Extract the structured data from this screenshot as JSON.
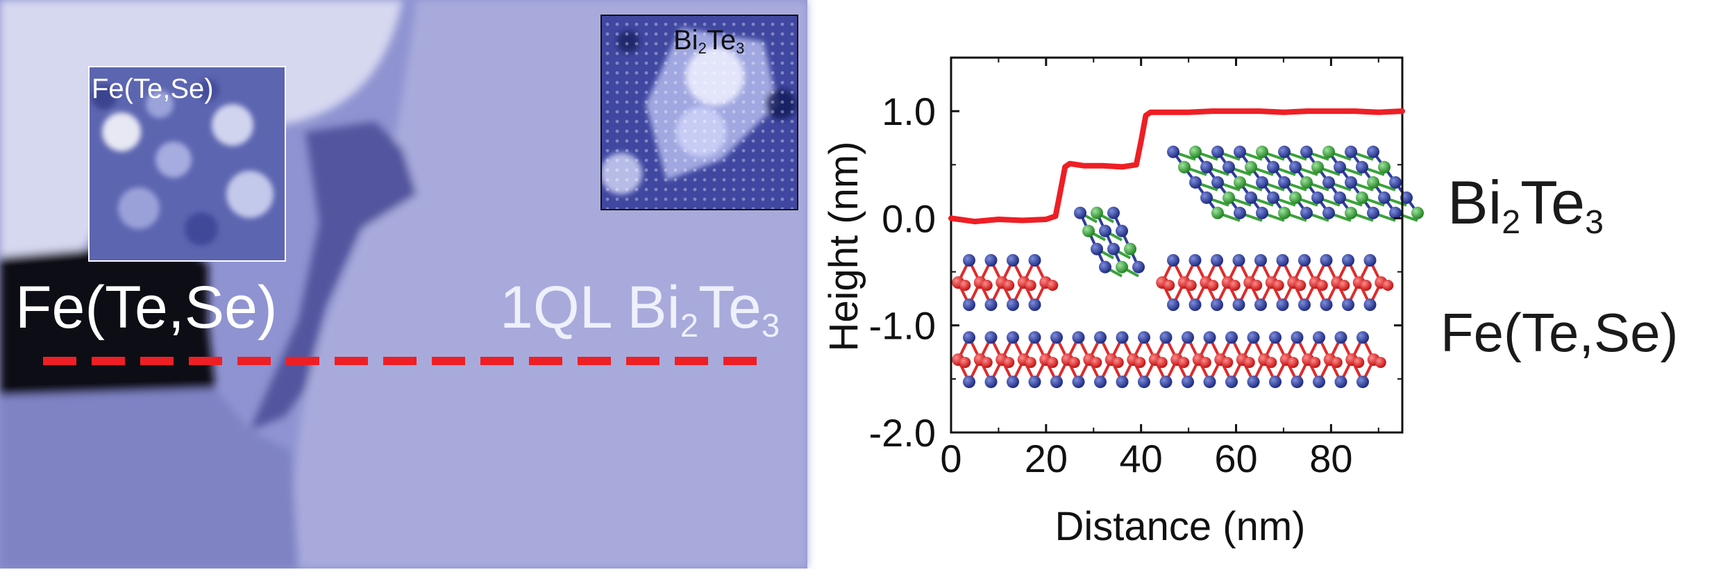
{
  "image_labels": {
    "fets_main": "Fe(Te,Se)",
    "bi2te3_main": [
      "1QL Bi",
      "2",
      "Te",
      "3"
    ],
    "inset_fets": "Fe(Te,Se)",
    "inset_bi2te3": [
      "Bi",
      "2",
      "Te",
      "3"
    ],
    "right_bi2te3": [
      "Bi",
      "2",
      "Te",
      "3"
    ],
    "right_fets": "Fe(Te,Se)"
  },
  "colors": {
    "profile": "#ee1f24",
    "stm_base": "#8e92d0",
    "te_atom": "#2f3d9a",
    "fe_atom": "#e02a2a",
    "se_atom": "#3aa23a"
  },
  "chart_data": {
    "type": "line",
    "xlabel": "Distance (nm)",
    "ylabel": "Height (nm)",
    "xlim": [
      0,
      95
    ],
    "ylim": [
      -2.0,
      1.5
    ],
    "xticks": [
      0,
      20,
      40,
      60,
      80
    ],
    "xtick_labels": [
      "0",
      "20",
      "40",
      "60",
      "80"
    ],
    "yticks": [
      -2.0,
      -1.0,
      0.0,
      1.0
    ],
    "ytick_labels": [
      "-2.0",
      "-1.0",
      "0.0",
      "1.0"
    ],
    "grid": false,
    "series": [
      {
        "color": "#ee1f24",
        "x": [
          0,
          5,
          10,
          15,
          20,
          22,
          23,
          24,
          25,
          28,
          32,
          36,
          39,
          40,
          41,
          42,
          45,
          50,
          55,
          60,
          65,
          70,
          75,
          80,
          85,
          90,
          95
        ],
        "y": [
          0.0,
          -0.03,
          -0.01,
          -0.02,
          -0.01,
          0.02,
          0.25,
          0.48,
          0.51,
          0.49,
          0.49,
          0.48,
          0.5,
          0.72,
          0.96,
          0.99,
          0.99,
          0.99,
          1.0,
          1.0,
          1.0,
          0.99,
          1.0,
          1.0,
          1.0,
          0.99,
          1.0
        ]
      }
    ]
  }
}
